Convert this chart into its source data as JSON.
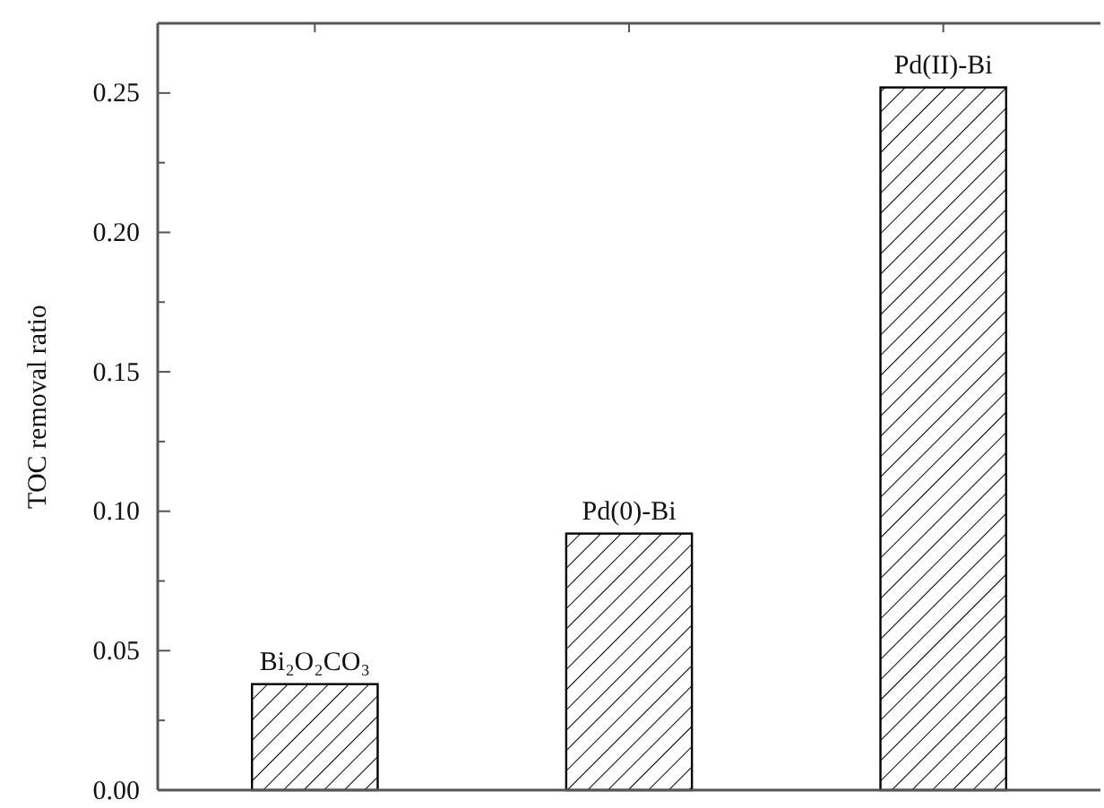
{
  "chart_data": {
    "type": "bar",
    "ylabel": "TOC removal ratio",
    "categories": [
      "Bi₂O₂CO₃",
      "Pd(0)-Bi",
      "Pd(II)-Bi"
    ],
    "values": [
      0.038,
      0.092,
      0.252
    ],
    "color": "#000000",
    "ylim": [
      0,
      0.275
    ],
    "yticks": [
      {
        "value": 0,
        "label": "0.00"
      },
      {
        "value": 0.025,
        "label": null
      },
      0.05,
      {
        "value": 0.075,
        "label": null
      },
      {
        "value": 0.1,
        "label": "0.10"
      },
      {
        "value": 0.125,
        "label": null
      },
      0.15,
      {
        "value": 0.175,
        "label": null
      },
      {
        "value": 0.2,
        "label": "0.20"
      },
      {
        "value": 0.225,
        "label": null
      },
      0.25
    ],
    "grid": false
  }
}
